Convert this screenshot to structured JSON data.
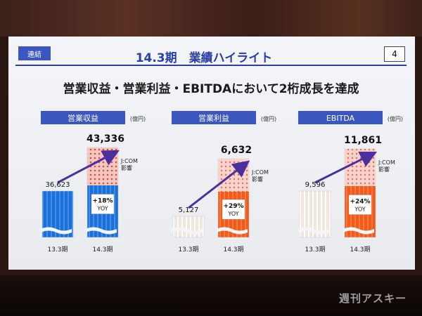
{
  "slide": {
    "tag": "連結",
    "title": "14.3期　業績ハイライト",
    "page_number": "4",
    "headline": "営業収益・営業利益・EBITDAにおいて2桁成長を達成"
  },
  "watermark": "週刊アスキー",
  "chart_data": [
    {
      "type": "bar",
      "title": "営業収益",
      "unit": "(億円)",
      "categories": [
        "13.3期",
        "14.3期"
      ],
      "values": [
        36623,
        43336
      ],
      "value_labels": [
        "36,623",
        "43,336"
      ],
      "yoy_label": "+18%",
      "yoy_sub": "YOY",
      "annotation": "J:COM影響",
      "colors": {
        "prev": "#1c6fd8",
        "curr": "#1c6fd8",
        "curr_top": "#e04a3a"
      }
    },
    {
      "type": "bar",
      "title": "営業利益",
      "unit": "(億円)",
      "categories": [
        "13.3期",
        "14.3期"
      ],
      "values": [
        5127,
        6632
      ],
      "value_labels": [
        "5,127",
        "6,632"
      ],
      "yoy_label": "+29%",
      "yoy_sub": "YOY",
      "annotation": "J:COM影響",
      "colors": {
        "prev": "#efe6dc",
        "curr": "#f05a1c",
        "curr_top": "#f5c6bd"
      }
    },
    {
      "type": "bar",
      "title": "EBITDA",
      "unit": "(億円)",
      "categories": [
        "13.3期",
        "14.3期"
      ],
      "values": [
        9596,
        11861
      ],
      "value_labels": [
        "9,596",
        "11,861"
      ],
      "yoy_label": "+24%",
      "yoy_sub": "YOY",
      "annotation": "J:COM影響",
      "colors": {
        "prev": "#efe6dc",
        "curr": "#f05a1c",
        "curr_top": "#f5c6bd"
      }
    }
  ]
}
